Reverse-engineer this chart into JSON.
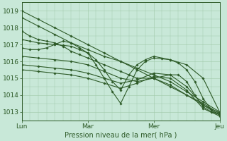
{
  "bg_color": "#c8e8d8",
  "grid_color": "#a0c8a8",
  "line_color": "#2d5a27",
  "marker_color": "#2d5a27",
  "xlabel": "Pression niveau de la mer( hPa )",
  "xlabel_color": "#2d5a27",
  "tick_color": "#2d5a27",
  "ylim": [
    1012.5,
    1019.5
  ],
  "yticks": [
    1013,
    1014,
    1015,
    1016,
    1017,
    1018,
    1019
  ],
  "xlim": [
    0,
    72
  ],
  "xtick_positions": [
    0,
    24,
    48,
    72
  ],
  "xtick_labels": [
    "Lun",
    "Mar",
    "Mer",
    "Jeu"
  ],
  "figsize": [
    3.2,
    2.0
  ],
  "dpi": 100,
  "lines": [
    {
      "x": [
        0,
        6,
        12,
        18,
        24,
        30,
        36,
        42,
        48,
        54,
        60,
        66,
        72
      ],
      "y": [
        1019.0,
        1018.5,
        1018.0,
        1017.5,
        1017.0,
        1016.5,
        1016.0,
        1015.5,
        1015.0,
        1014.5,
        1014.0,
        1013.5,
        1012.9
      ]
    },
    {
      "x": [
        0,
        6,
        12,
        18,
        24,
        30,
        36,
        42,
        48,
        54,
        60,
        66,
        72
      ],
      "y": [
        1018.6,
        1018.1,
        1017.6,
        1017.1,
        1016.7,
        1016.3,
        1016.0,
        1015.6,
        1015.2,
        1014.8,
        1014.2,
        1013.6,
        1013.0
      ]
    },
    {
      "x": [
        0,
        3,
        6,
        9,
        12,
        15,
        18,
        21,
        24,
        30,
        36,
        42,
        48,
        54,
        60,
        66,
        72
      ],
      "y": [
        1017.8,
        1017.5,
        1017.3,
        1017.2,
        1017.1,
        1016.9,
        1016.6,
        1016.4,
        1016.2,
        1015.8,
        1015.4,
        1015.0,
        1015.0,
        1014.6,
        1014.0,
        1013.4,
        1012.95
      ]
    },
    {
      "x": [
        0,
        3,
        6,
        9,
        12,
        15,
        18,
        21,
        24,
        27,
        30,
        33,
        36,
        39,
        42,
        45,
        48,
        54,
        60,
        66,
        72
      ],
      "y": [
        1017.3,
        1017.2,
        1017.1,
        1017.05,
        1017.0,
        1016.95,
        1016.9,
        1016.7,
        1016.5,
        1016.1,
        1015.5,
        1014.8,
        1014.3,
        1015.2,
        1015.8,
        1016.1,
        1016.3,
        1016.1,
        1015.8,
        1015.0,
        1013.0
      ]
    },
    {
      "x": [
        0,
        3,
        6,
        9,
        12,
        15,
        18,
        21,
        24,
        27,
        30,
        33,
        36,
        39,
        42,
        45,
        48,
        51,
        54,
        57,
        60,
        63,
        66,
        69,
        72
      ],
      "y": [
        1016.8,
        1016.7,
        1016.7,
        1016.8,
        1017.0,
        1017.2,
        1017.1,
        1016.8,
        1016.5,
        1015.8,
        1015.0,
        1014.2,
        1013.5,
        1014.5,
        1015.5,
        1016.0,
        1016.2,
        1016.15,
        1016.1,
        1015.9,
        1015.5,
        1014.8,
        1013.8,
        1013.1,
        1012.85
      ]
    },
    {
      "x": [
        0,
        6,
        12,
        18,
        24,
        30,
        36,
        42,
        48,
        54,
        57,
        60,
        63,
        66,
        69,
        72
      ],
      "y": [
        1016.3,
        1016.2,
        1016.1,
        1016.0,
        1015.8,
        1015.4,
        1015.0,
        1014.8,
        1015.0,
        1015.2,
        1015.2,
        1014.8,
        1014.0,
        1013.3,
        1013.0,
        1012.85
      ]
    },
    {
      "x": [
        0,
        6,
        12,
        18,
        24,
        30,
        36,
        42,
        48,
        54,
        60,
        66,
        72
      ],
      "y": [
        1015.8,
        1015.7,
        1015.6,
        1015.5,
        1015.3,
        1015.0,
        1014.7,
        1014.9,
        1015.3,
        1015.2,
        1014.5,
        1013.4,
        1012.8
      ]
    },
    {
      "x": [
        0,
        6,
        12,
        18,
        24,
        30,
        36,
        42,
        48,
        54,
        60,
        66,
        72
      ],
      "y": [
        1015.5,
        1015.4,
        1015.3,
        1015.2,
        1015.0,
        1014.7,
        1014.4,
        1014.7,
        1015.1,
        1015.0,
        1014.3,
        1013.2,
        1012.75
      ]
    }
  ]
}
